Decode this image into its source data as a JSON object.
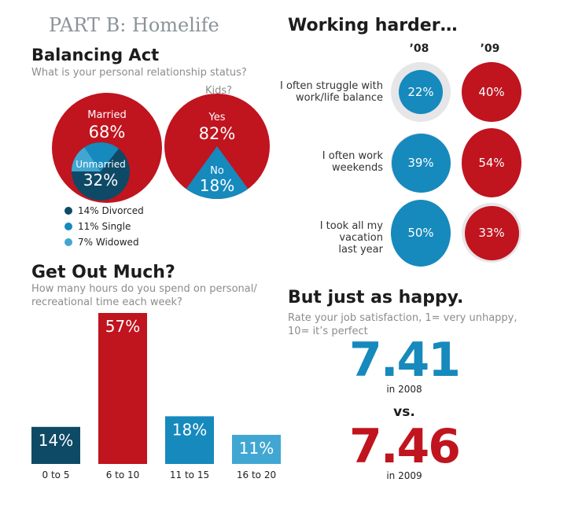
{
  "part_title": "PART B: Homelife",
  "colors": {
    "red": "#c0141f",
    "navy": "#0e4a66",
    "blue": "#1689bd",
    "light_blue": "#41a7d2",
    "ring": "#e6e6e8"
  },
  "balancing": {
    "title": "Balancing Act",
    "question": "What is your personal relationship status?",
    "married_label": "Married",
    "married_value": "68%",
    "unmarried_label": "Unmarried",
    "unmarried_value": "32%",
    "kids_label": "Kids?",
    "yes_label": "Yes",
    "yes_value": "82%",
    "no_label": "No",
    "no_value": "18%",
    "legend": [
      {
        "label": "14% Divorced",
        "color": "#0e4a66"
      },
      {
        "label": "11% Single",
        "color": "#1689bd"
      },
      {
        "label": "7% Widowed",
        "color": "#41a7d2"
      }
    ]
  },
  "working": {
    "title": "Working harder…",
    "year1": "’08",
    "year2": "’09",
    "rows": [
      {
        "label_lines": [
          "I often struggle with",
          "work/life balance"
        ],
        "v08": "22%",
        "v09": "40%",
        "n08": 22,
        "n09": 40
      },
      {
        "label_lines": [
          "I often work",
          "weekends"
        ],
        "v08": "39%",
        "v09": "54%",
        "n08": 39,
        "n09": 54
      },
      {
        "label_lines": [
          "I took all my vacation",
          "last year"
        ],
        "v08": "50%",
        "v09": "33%",
        "n08": 50,
        "n09": 33
      }
    ]
  },
  "chart_data": {
    "type": "bar",
    "title": "Get Out Much?",
    "subtitle_lines": [
      "How many hours do you spend on personal/",
      "recreational time each week?"
    ],
    "categories": [
      "0 to 5",
      "6 to 10",
      "11 to 15",
      "16 to 20"
    ],
    "values": [
      14,
      57,
      18,
      11
    ],
    "value_labels": [
      "14%",
      "57%",
      "18%",
      "11%"
    ],
    "colors": [
      "#0e4a66",
      "#c0141f",
      "#1689bd",
      "#41a7d2"
    ],
    "xlabel": "",
    "ylabel": "",
    "ylim": [
      0,
      57
    ],
    "grid": false
  },
  "happy": {
    "title": "But just as happy.",
    "question_lines": [
      "Rate your job satisfaction, 1= very unhappy,",
      "10= it’s perfect"
    ],
    "score_2008": "7.41",
    "caption_2008": "in 2008",
    "vs": "vs.",
    "score_2009": "7.46",
    "caption_2009": "in 2009"
  }
}
